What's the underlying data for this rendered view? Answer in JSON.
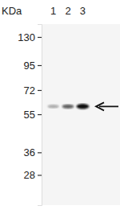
{
  "chart_data": {
    "type": "blot",
    "y_label": "KDa",
    "categories": [
      "1",
      "2",
      "3"
    ],
    "values": [
      60,
      60,
      60
    ],
    "intensity": [
      0.35,
      0.65,
      1.0
    ],
    "log": "y",
    "ylim": [
      20,
      150
    ],
    "yticks": [
      130,
      95,
      72,
      55,
      36,
      28
    ],
    "color": "#111111"
  }
}
